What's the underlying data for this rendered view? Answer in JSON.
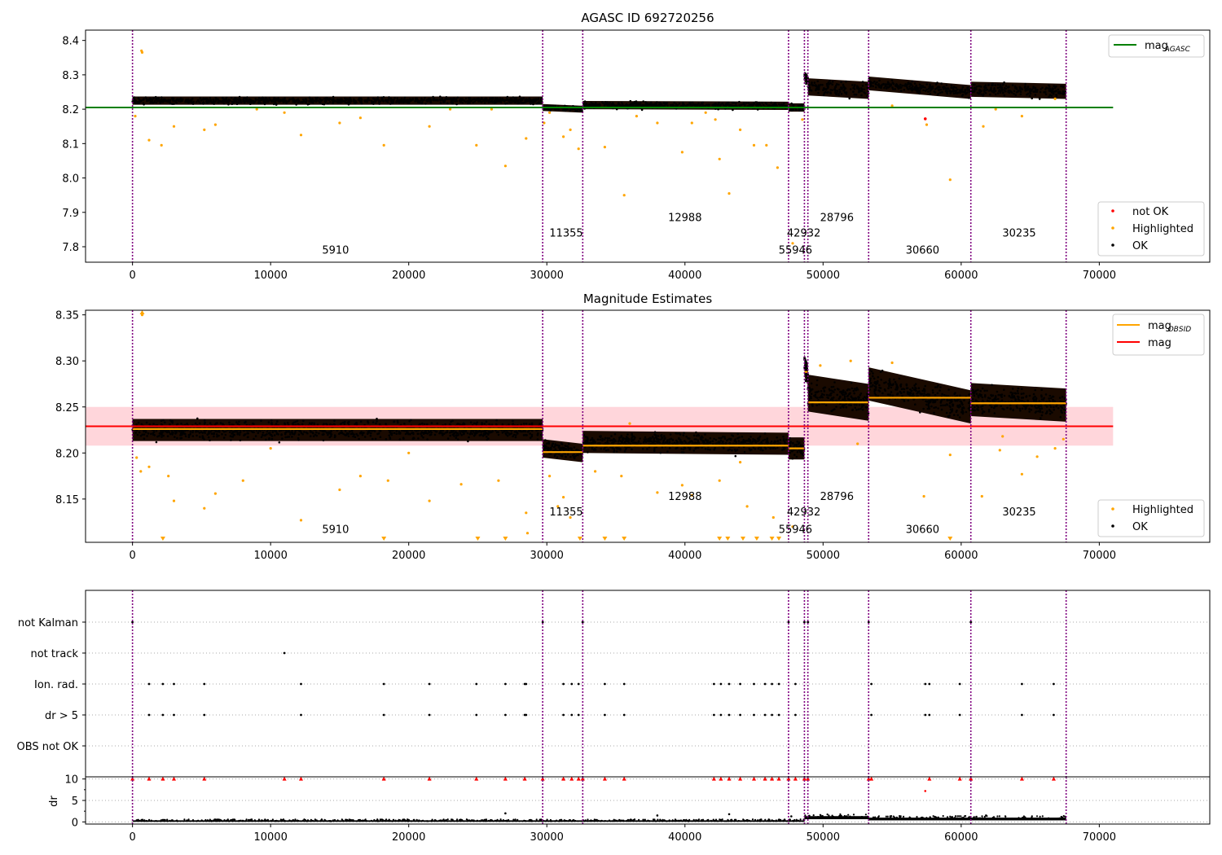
{
  "chart_data": [
    {
      "type": "scatter",
      "title": "AGASC ID 692720256",
      "xlim": [
        -3400,
        78000
      ],
      "ylim": [
        7.755,
        8.43
      ],
      "xticks": [
        0,
        10000,
        20000,
        30000,
        40000,
        50000,
        60000,
        70000
      ],
      "yticks": [
        7.8,
        7.9,
        8.0,
        8.1,
        8.2,
        8.3,
        8.4
      ],
      "obs_boundaries": [
        0,
        29700,
        32600,
        47500,
        48650,
        48900,
        53300,
        60700,
        67600
      ],
      "obs_labels": [
        {
          "text": "5910",
          "x": 14700,
          "y": 7.78
        },
        {
          "text": "11355",
          "x": 31400,
          "y": 7.83
        },
        {
          "text": "12988",
          "x": 40000,
          "y": 7.875
        },
        {
          "text": "42932",
          "x": 48600,
          "y": 7.83
        },
        {
          "text": "55946",
          "x": 48000,
          "y": 7.78
        },
        {
          "text": "28796",
          "x": 51000,
          "y": 7.875
        },
        {
          "text": "30660",
          "x": 57200,
          "y": 7.78
        },
        {
          "text": "30235",
          "x": 64200,
          "y": 7.83
        }
      ],
      "reference_line": {
        "name": "mag_AGASC",
        "value": 8.205,
        "x_end": 71000,
        "color": "#008000"
      },
      "ok_segments": [
        {
          "x": [
            0,
            29700
          ],
          "center": 8.225,
          "halfwidth": 0.012,
          "start_value": 8.225,
          "end_value": 8.225
        },
        {
          "x": [
            29700,
            32600
          ],
          "center": 8.2,
          "halfwidth": 0.01,
          "start_value": 8.205,
          "end_value": 8.2
        },
        {
          "x": [
            32600,
            47500
          ],
          "center": 8.21,
          "halfwidth": 0.012,
          "start_value": 8.212,
          "end_value": 8.21
        },
        {
          "x": [
            47500,
            48650
          ],
          "center": 8.205,
          "halfwidth": 0.012,
          "start_value": 8.205,
          "end_value": 8.205
        },
        {
          "x": [
            48650,
            48900
          ],
          "center": 8.29,
          "halfwidth": 0.015,
          "start_value": 8.295,
          "end_value": 8.285
        },
        {
          "x": [
            48900,
            53300
          ],
          "center": 8.26,
          "halfwidth": 0.025,
          "start_value": 8.265,
          "end_value": 8.255
        },
        {
          "x": [
            53300,
            60700
          ],
          "center": 8.265,
          "halfwidth": 0.02,
          "start_value": 8.275,
          "end_value": 8.25
        },
        {
          "x": [
            60700,
            67600
          ],
          "center": 8.255,
          "halfwidth": 0.022,
          "start_value": 8.258,
          "end_value": 8.252
        }
      ],
      "highlighted_points": [
        [
          650,
          8.37
        ],
        [
          700,
          8.365
        ],
        [
          1200,
          8.11
        ],
        [
          2100,
          8.095
        ],
        [
          3000,
          8.15
        ],
        [
          5200,
          8.14
        ],
        [
          6000,
          8.155
        ],
        [
          12200,
          8.125
        ],
        [
          15000,
          8.16
        ],
        [
          16500,
          8.175
        ],
        [
          18200,
          8.095
        ],
        [
          21500,
          8.15
        ],
        [
          24900,
          8.095
        ],
        [
          27000,
          8.035
        ],
        [
          28500,
          8.115
        ],
        [
          29800,
          8.16
        ],
        [
          30200,
          8.19
        ],
        [
          31200,
          8.12
        ],
        [
          31700,
          8.14
        ],
        [
          32300,
          8.085
        ],
        [
          34200,
          8.09
        ],
        [
          35600,
          7.95
        ],
        [
          38000,
          8.16
        ],
        [
          39800,
          8.075
        ],
        [
          40500,
          8.16
        ],
        [
          42500,
          8.055
        ],
        [
          43200,
          7.955
        ],
        [
          44000,
          8.14
        ],
        [
          45000,
          8.095
        ],
        [
          45900,
          8.095
        ],
        [
          46700,
          8.03
        ],
        [
          47800,
          7.81
        ],
        [
          48500,
          8.17
        ],
        [
          57500,
          8.155
        ],
        [
          59200,
          7.995
        ],
        [
          61600,
          8.15
        ],
        [
          64400,
          8.18
        ],
        [
          66800,
          8.23
        ],
        [
          200,
          8.18
        ],
        [
          9000,
          8.2
        ],
        [
          23000,
          8.2
        ],
        [
          36500,
          8.18
        ],
        [
          42200,
          8.17
        ],
        [
          55000,
          8.21
        ],
        [
          62500,
          8.2
        ],
        [
          41500,
          8.19
        ],
        [
          26000,
          8.2
        ],
        [
          11000,
          8.19
        ]
      ],
      "not_ok_points": [
        [
          57400,
          8.172
        ]
      ],
      "legend_upper": [
        {
          "label": "mag",
          "sub": "AGASC",
          "color": "#008000",
          "marker": "line"
        }
      ],
      "legend_lower": [
        {
          "label": "not OK",
          "color": "#ff0000",
          "marker": "dot"
        },
        {
          "label": "Highlighted",
          "color": "#ffa500",
          "marker": "dot"
        },
        {
          "label": "OK",
          "color": "#000000",
          "marker": "dot"
        }
      ],
      "xlabel": "",
      "ylabel": "",
      "grid": false
    },
    {
      "type": "scatter",
      "title": "Magnitude Estimates",
      "xlim": [
        -3400,
        78000
      ],
      "ylim": [
        8.103,
        8.355
      ],
      "xticks": [
        0,
        10000,
        20000,
        30000,
        40000,
        50000,
        60000,
        70000
      ],
      "yticks": [
        8.15,
        8.2,
        8.25,
        8.3,
        8.35
      ],
      "obs_boundaries": [
        0,
        29700,
        32600,
        47500,
        48650,
        48900,
        53300,
        60700,
        67600
      ],
      "obs_labels": [
        {
          "text": "5910",
          "x": 14700,
          "y": 8.113
        },
        {
          "text": "11355",
          "x": 31400,
          "y": 8.132
        },
        {
          "text": "12988",
          "x": 40000,
          "y": 8.149
        },
        {
          "text": "42932",
          "x": 48600,
          "y": 8.132
        },
        {
          "text": "55946",
          "x": 48000,
          "y": 8.113
        },
        {
          "text": "28796",
          "x": 51000,
          "y": 8.149
        },
        {
          "text": "30660",
          "x": 57200,
          "y": 8.113
        },
        {
          "text": "30235",
          "x": 64200,
          "y": 8.132
        }
      ],
      "reference_line": {
        "name": "mag",
        "value": 8.229,
        "x_end": 71000,
        "color": "#ff0000"
      },
      "reference_band": [
        8.208,
        8.25
      ],
      "obsid_means": [
        {
          "x": [
            0,
            29700
          ],
          "value": 8.226
        },
        {
          "x": [
            29700,
            32600
          ],
          "value": 8.201
        },
        {
          "x": [
            32600,
            47500
          ],
          "value": 8.208
        },
        {
          "x": [
            47500,
            48650
          ],
          "value": 8.205
        },
        {
          "x": [
            48650,
            48900
          ],
          "value": 8.288
        },
        {
          "x": [
            48900,
            53300
          ],
          "value": 8.255
        },
        {
          "x": [
            53300,
            60700
          ],
          "value": 8.26
        },
        {
          "x": [
            60700,
            67600
          ],
          "value": 8.254
        }
      ],
      "ok_segments": [
        {
          "x": [
            0,
            29700
          ],
          "center": 8.225,
          "halfwidth": 0.012,
          "start_value": 8.225,
          "end_value": 8.225
        },
        {
          "x": [
            29700,
            32600
          ],
          "center": 8.2,
          "halfwidth": 0.01,
          "start_value": 8.205,
          "end_value": 8.2
        },
        {
          "x": [
            32600,
            47500
          ],
          "center": 8.21,
          "halfwidth": 0.012,
          "start_value": 8.212,
          "end_value": 8.21
        },
        {
          "x": [
            47500,
            48650
          ],
          "center": 8.205,
          "halfwidth": 0.012,
          "start_value": 8.205,
          "end_value": 8.205
        },
        {
          "x": [
            48650,
            48900
          ],
          "center": 8.29,
          "halfwidth": 0.012,
          "start_value": 8.295,
          "end_value": 8.285
        },
        {
          "x": [
            48900,
            53300
          ],
          "center": 8.26,
          "halfwidth": 0.02,
          "start_value": 8.265,
          "end_value": 8.255
        },
        {
          "x": [
            53300,
            60700
          ],
          "center": 8.265,
          "halfwidth": 0.018,
          "start_value": 8.275,
          "end_value": 8.25
        },
        {
          "x": [
            60700,
            67600
          ],
          "center": 8.255,
          "halfwidth": 0.018,
          "start_value": 8.258,
          "end_value": 8.252
        }
      ],
      "highlighted_points": [
        [
          700,
          8.35
        ],
        [
          300,
          8.195
        ],
        [
          600,
          8.18
        ],
        [
          1200,
          8.185
        ],
        [
          2600,
          8.175
        ],
        [
          3000,
          8.148
        ],
        [
          5200,
          8.14
        ],
        [
          6000,
          8.156
        ],
        [
          8000,
          8.17
        ],
        [
          12200,
          8.127
        ],
        [
          15000,
          8.16
        ],
        [
          16500,
          8.175
        ],
        [
          18500,
          8.17
        ],
        [
          21500,
          8.148
        ],
        [
          23800,
          8.166
        ],
        [
          26500,
          8.17
        ],
        [
          28500,
          8.135
        ],
        [
          28600,
          8.113
        ],
        [
          30200,
          8.175
        ],
        [
          30800,
          8.142
        ],
        [
          31200,
          8.152
        ],
        [
          31700,
          8.13
        ],
        [
          33500,
          8.18
        ],
        [
          35400,
          8.175
        ],
        [
          38000,
          8.157
        ],
        [
          39800,
          8.165
        ],
        [
          40500,
          8.154
        ],
        [
          42500,
          8.17
        ],
        [
          44500,
          8.142
        ],
        [
          46400,
          8.13
        ],
        [
          47800,
          8.12
        ],
        [
          52500,
          8.21
        ],
        [
          57300,
          8.153
        ],
        [
          59200,
          8.198
        ],
        [
          61500,
          8.153
        ],
        [
          62800,
          8.203
        ],
        [
          64400,
          8.177
        ],
        [
          65500,
          8.196
        ],
        [
          66800,
          8.205
        ],
        [
          67400,
          8.215
        ],
        [
          36000,
          8.232
        ],
        [
          52000,
          8.3
        ],
        [
          55000,
          8.298
        ],
        [
          49800,
          8.295
        ],
        [
          63000,
          8.218
        ],
        [
          10000,
          8.205
        ],
        [
          20000,
          8.2
        ],
        [
          44000,
          8.19
        ]
      ],
      "below_range_markers": [
        2200,
        18200,
        25000,
        27000,
        32400,
        34200,
        35600,
        42500,
        43100,
        44200,
        45200,
        46300,
        46800,
        59200
      ],
      "legend_upper": [
        {
          "label": "mag",
          "sub": "OBSID",
          "color": "#ffa500",
          "marker": "line"
        },
        {
          "label": "mag",
          "sub": "",
          "color": "#ff0000",
          "marker": "line"
        }
      ],
      "legend_lower": [
        {
          "label": "Highlighted",
          "color": "#ffa500",
          "marker": "dot"
        },
        {
          "label": "OK",
          "color": "#000000",
          "marker": "dot"
        }
      ],
      "xlabel": "",
      "ylabel": "",
      "grid": false
    },
    {
      "type": "scatter",
      "title": "",
      "xlim": [
        -3400,
        78000
      ],
      "categories": [
        "not Kalman",
        "not track",
        "Ion. rad.",
        "dr > 5",
        "OBS not OK"
      ],
      "flag_points": {
        "not Kalman": [
          0,
          29700,
          32600,
          47500,
          48650,
          48900,
          53300,
          60700
        ],
        "not track": [
          11000
        ],
        "Ion. rad.": [
          1200,
          2200,
          3000,
          5200,
          12200,
          18200,
          21500,
          24900,
          27000,
          28400,
          28500,
          31200,
          31800,
          32300,
          34200,
          35600,
          42100,
          42600,
          43200,
          44000,
          45000,
          45800,
          46300,
          46800,
          48000,
          53500,
          57400,
          57700,
          59900,
          64400,
          66700
        ],
        "dr > 5": [
          1200,
          2200,
          3000,
          5200,
          12200,
          18200,
          21500,
          24900,
          27000,
          28400,
          28500,
          31200,
          31800,
          32300,
          34200,
          35600,
          42100,
          42600,
          43200,
          44000,
          45000,
          45800,
          46300,
          46800,
          48000,
          53500,
          57400,
          57700,
          59900,
          64400,
          66700
        ],
        "OBS not OK": []
      },
      "obs_boundaries": [
        0,
        29700,
        32600,
        47500,
        48650,
        48900,
        53300,
        60700,
        67600
      ],
      "grid": "horizontal dotted"
    },
    {
      "type": "scatter",
      "title": "",
      "xlim": [
        -3400,
        78000
      ],
      "ylim": [
        -0.5,
        10.5
      ],
      "xticks": [
        0,
        10000,
        20000,
        30000,
        40000,
        50000,
        60000,
        70000
      ],
      "yticks": [
        0,
        5,
        10
      ],
      "ylabel": "dr",
      "clipped_markers": [
        0,
        1200,
        2200,
        3000,
        5200,
        11000,
        12200,
        18200,
        21500,
        24900,
        27000,
        28400,
        29700,
        31200,
        31800,
        32300,
        32600,
        34200,
        35600,
        42100,
        42600,
        43200,
        44000,
        45000,
        45800,
        46300,
        46800,
        47500,
        48000,
        48650,
        48900,
        53300,
        53500,
        57700,
        59900,
        60700,
        64400,
        66700
      ],
      "outlier_points": [
        [
          57400,
          7.2
        ],
        [
          47700,
          1.3
        ],
        [
          27000,
          2.0
        ],
        [
          43200,
          1.8
        ],
        [
          38000,
          1.5
        ],
        [
          61800,
          1.5
        ]
      ],
      "dr_segments": [
        {
          "x": [
            0,
            48650
          ],
          "base": 0.15,
          "spread": 0.45
        },
        {
          "x": [
            48650,
            53300
          ],
          "base": 0.9,
          "spread": 0.9
        },
        {
          "x": [
            53300,
            67600
          ],
          "base": 0.6,
          "spread": 0.8
        }
      ],
      "obs_boundaries": [
        0,
        29700,
        32600,
        47500,
        48650,
        48900,
        53300,
        60700,
        67600
      ],
      "grid": "horizontal dotted"
    }
  ],
  "colors": {
    "ok": "#000000",
    "highlighted": "#ffa500",
    "not_ok": "#ff0000",
    "agasc_line": "#008000",
    "mag_line": "#ff0000",
    "obsid_line": "#ffa500",
    "boundary": "#800080",
    "band": "#ffd6db"
  }
}
